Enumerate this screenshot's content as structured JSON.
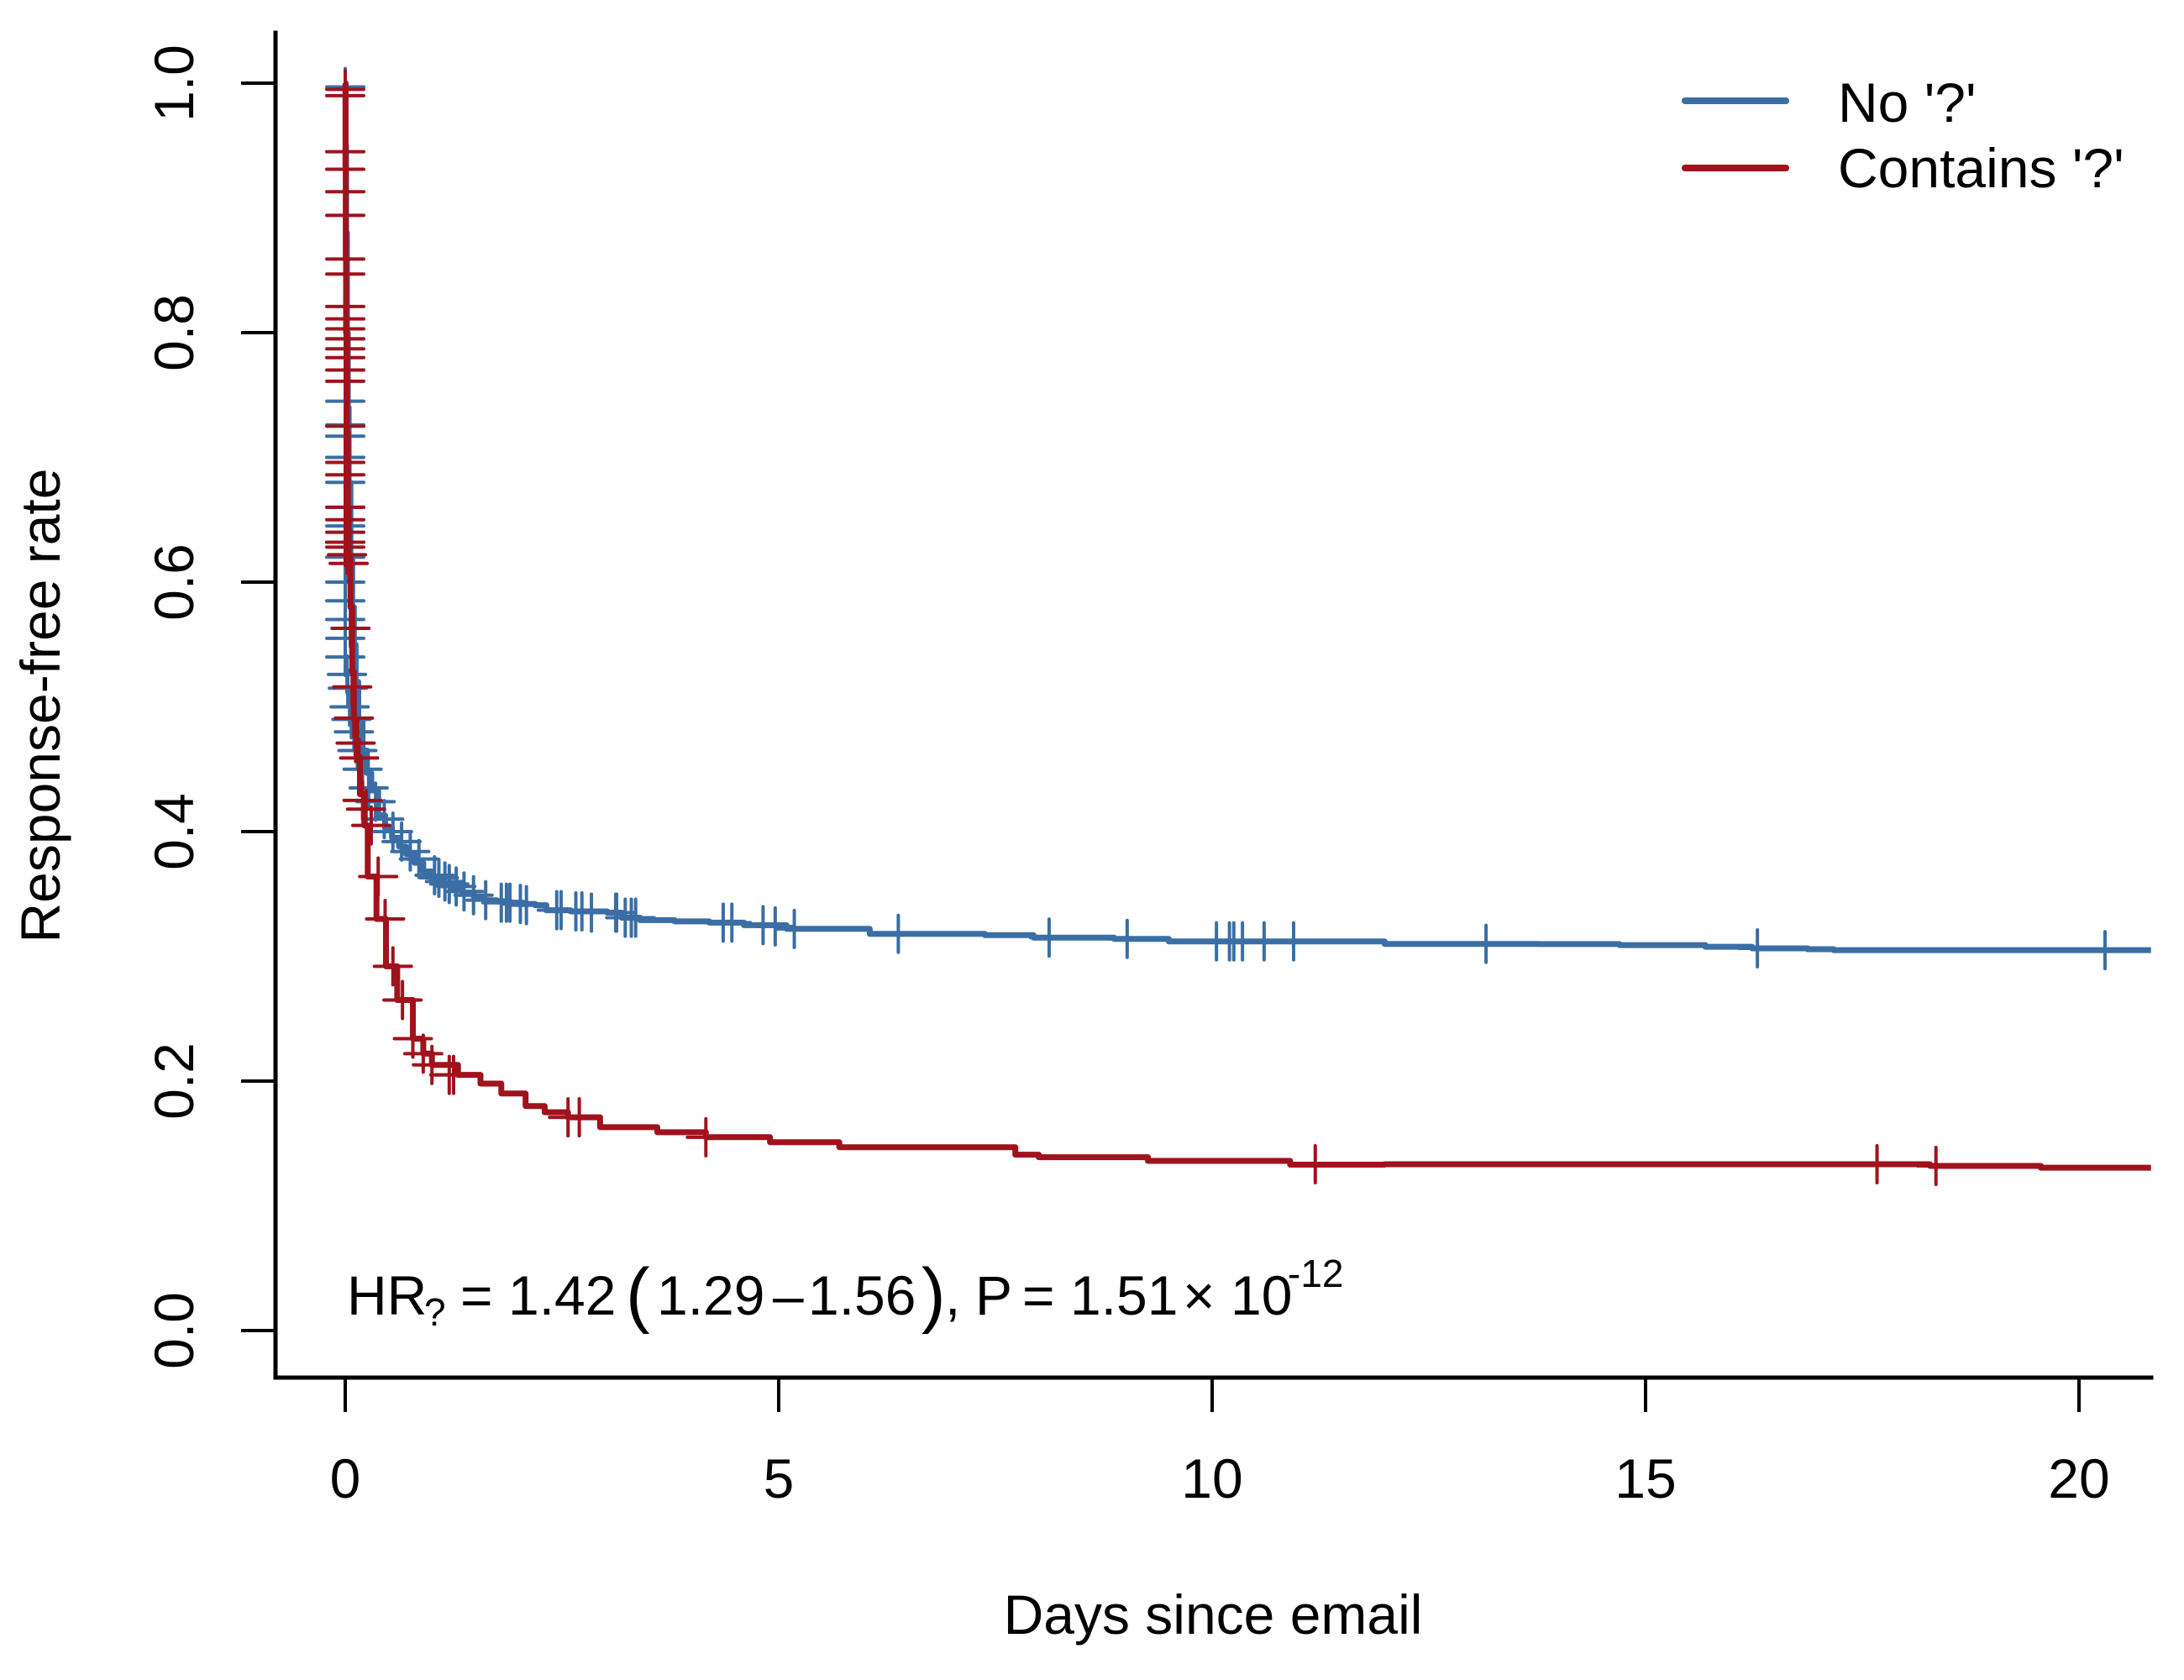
{
  "chart_data": {
    "type": "line",
    "subtype": "kaplan-meier step curve with censor marks",
    "xlabel": "Days since email",
    "ylabel": "Response-free rate",
    "xlim": [
      -0.8,
      20.83
    ],
    "ylim": [
      -0.04,
      1.04
    ],
    "x_ticks": [
      0,
      5,
      10,
      15,
      20
    ],
    "x_tick_labels": [
      "0",
      "5",
      "10",
      "15",
      "20"
    ],
    "y_ticks": [
      0.0,
      0.2,
      0.4,
      0.6,
      0.8,
      1.0
    ],
    "y_tick_labels": [
      "0.0",
      "0.2",
      "0.4",
      "0.6",
      "0.8",
      "1.0"
    ],
    "grid": false,
    "legend": {
      "position": "top-right",
      "entries": [
        "No '?'",
        "Contains '?'"
      ]
    },
    "annotation": {
      "hr_label": "HR",
      "hr_subscript": "?",
      "equals": "=",
      "hr_value": "1.42",
      "ci_open": "(",
      "ci_low": "1.29",
      "ci_dash": "–",
      "ci_high": "1.56",
      "ci_close": ")",
      "comma": ",",
      "p_label": "P",
      "p_mantissa": "1.51",
      "times": "×",
      "p_base": "10",
      "p_exponent": "-12"
    },
    "series": [
      {
        "name": "No '?'",
        "color": "#3A6EA5",
        "x": [
          0,
          0.005,
          0.01,
          0.02,
          0.03,
          0.04,
          0.06,
          0.08,
          0.1,
          0.12,
          0.15,
          0.2,
          0.25,
          0.3,
          0.38,
          0.46,
          0.54,
          0.62,
          0.7,
          0.8,
          0.9,
          1.0,
          1.12,
          1.25,
          1.35,
          1.48,
          1.6,
          1.75,
          1.9,
          2.05,
          2.19,
          2.32,
          2.6,
          3.02,
          3.19,
          3.4,
          3.8,
          4.2,
          4.6,
          5.09,
          5.7,
          6.05,
          7.19,
          7.38,
          7.94,
          8.87,
          9.5,
          11.8,
          11.99,
          13.46,
          13.76,
          14.7,
          15.69,
          16.23,
          16.87,
          17.17,
          20.83
        ],
        "y": [
          1.0,
          0.95,
          0.88,
          0.8,
          0.74,
          0.68,
          0.62,
          0.58,
          0.55,
          0.52,
          0.49,
          0.465,
          0.447,
          0.433,
          0.413,
          0.403,
          0.395,
          0.388,
          0.382,
          0.375,
          0.368,
          0.362,
          0.357,
          0.353,
          0.351,
          0.348,
          0.345,
          0.344,
          0.343,
          0.342,
          0.341,
          0.337,
          0.336,
          0.335,
          0.331,
          0.329,
          0.328,
          0.327,
          0.325,
          0.322,
          0.322,
          0.318,
          0.318,
          0.317,
          0.315,
          0.314,
          0.312,
          0.312,
          0.31,
          0.31,
          0.3098,
          0.309,
          0.3077,
          0.3064,
          0.3057,
          0.305,
          0.305
        ],
        "censor_x": [
          0,
          0,
          0,
          0,
          0,
          0,
          0,
          0,
          0,
          0,
          0,
          0,
          0,
          0,
          0,
          0,
          0.02,
          0.03,
          0.05,
          0.07,
          0.1,
          0.14,
          0.2,
          0.27,
          0.35,
          0.45,
          0.55,
          0.65,
          0.75,
          0.85,
          1.03,
          1.08,
          1.15,
          1.2,
          1.28,
          1.37,
          1.48,
          1.62,
          1.8,
          1.86,
          1.9,
          2.02,
          2.09,
          2.44,
          2.49,
          2.66,
          2.73,
          2.84,
          3.12,
          3.13,
          3.23,
          3.3,
          3.35,
          4.36,
          4.46,
          4.82,
          4.96,
          5.18,
          6.38,
          8.12,
          9.02,
          10.05,
          10.2,
          10.25,
          10.35,
          10.6,
          10.94,
          13.16,
          16.29,
          20.3
        ],
        "censor_y": [
          0.997,
          0.795,
          0.745,
          0.726,
          0.717,
          0.7,
          0.68,
          0.66,
          0.645,
          0.632,
          0.62,
          0.6,
          0.585,
          0.57,
          0.555,
          0.54,
          0.526,
          0.515,
          0.5,
          0.49,
          0.48,
          0.465,
          0.45,
          0.435,
          0.424,
          0.41,
          0.4,
          0.392,
          0.384,
          0.378,
          0.365,
          0.363,
          0.36,
          0.358,
          0.356,
          0.352,
          0.349,
          0.345,
          0.343,
          0.343,
          0.343,
          0.342,
          0.341,
          0.337,
          0.337,
          0.336,
          0.336,
          0.335,
          0.335,
          0.335,
          0.331,
          0.331,
          0.331,
          0.327,
          0.327,
          0.325,
          0.324,
          0.322,
          0.318,
          0.315,
          0.314,
          0.312,
          0.312,
          0.312,
          0.312,
          0.312,
          0.312,
          0.31,
          0.3064,
          0.305
        ]
      },
      {
        "name": "Contains '?'",
        "color": "#A0121C",
        "x": [
          0,
          0.003,
          0.006,
          0.01,
          0.02,
          0.03,
          0.04,
          0.06,
          0.08,
          0.1,
          0.13,
          0.17,
          0.22,
          0.26,
          0.36,
          0.47,
          0.6,
          0.78,
          0.9,
          1.0,
          1.3,
          1.56,
          1.8,
          2.08,
          2.3,
          2.57,
          2.94,
          3.6,
          4.16,
          4.9,
          5.7,
          7.38,
          7.73,
          8.0,
          9.26,
          10.9,
          11.99,
          13.46,
          18.28,
          19.56,
          20.83
        ],
        "y": [
          1.0,
          0.93,
          0.86,
          0.8,
          0.72,
          0.66,
          0.62,
          0.58,
          0.528,
          0.49,
          0.46,
          0.43,
          0.405,
          0.364,
          0.33,
          0.292,
          0.265,
          0.234,
          0.222,
          0.213,
          0.205,
          0.198,
          0.19,
          0.18,
          0.175,
          0.171,
          0.163,
          0.159,
          0.155,
          0.151,
          0.147,
          0.147,
          0.141,
          0.139,
          0.136,
          0.133,
          0.1333,
          0.1333,
          0.132,
          0.1306,
          0.1306
        ],
        "censor_x": [
          0,
          0,
          0,
          0,
          0,
          0,
          0,
          0,
          0,
          0,
          0,
          0,
          0,
          0,
          0,
          0,
          0,
          0,
          0,
          0,
          0,
          0,
          0,
          0,
          0.02,
          0.04,
          0.06,
          0.08,
          0.1,
          0.12,
          0.16,
          0.2,
          0.24,
          0.3,
          0.38,
          0.46,
          0.55,
          0.66,
          0.78,
          0.9,
          1.0,
          1.2,
          1.25,
          2.57,
          2.7,
          4.16,
          11.19,
          17.67,
          18.35
        ],
        "censor_y": [
          0.995,
          0.99,
          0.945,
          0.931,
          0.913,
          0.894,
          0.859,
          0.847,
          0.821,
          0.811,
          0.803,
          0.795,
          0.787,
          0.78,
          0.77,
          0.761,
          0.725,
          0.696,
          0.686,
          0.66,
          0.65,
          0.64,
          0.632,
          0.628,
          0.622,
          0.615,
          0.563,
          0.516,
          0.491,
          0.471,
          0.459,
          0.425,
          0.418,
          0.405,
          0.364,
          0.33,
          0.292,
          0.265,
          0.234,
          0.222,
          0.213,
          0.205,
          0.205,
          0.171,
          0.171,
          0.155,
          0.1333,
          0.1333,
          0.132
        ]
      }
    ]
  }
}
